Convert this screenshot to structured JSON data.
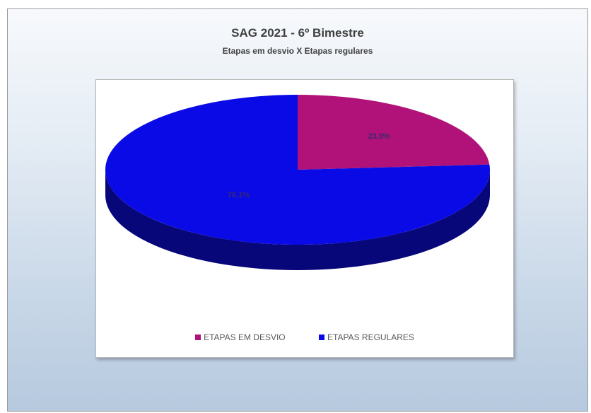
{
  "chart_data": {
    "type": "pie",
    "style": "3d",
    "title": "SAG 2021 - 6º Bimestre",
    "subtitle": "Etapas em desvio X Etapas regulares",
    "categories": [
      "ETAPAS EM DESVIO",
      "ETAPAS REGULARES"
    ],
    "values": [
      23.9,
      76.1
    ],
    "labels": [
      "23,9%",
      "76,1%"
    ],
    "colors": [
      "#b0127a",
      "#0a0ae6"
    ],
    "side_colors": [
      "#6a0a4a",
      "#07077a"
    ],
    "legend": "bottom"
  }
}
